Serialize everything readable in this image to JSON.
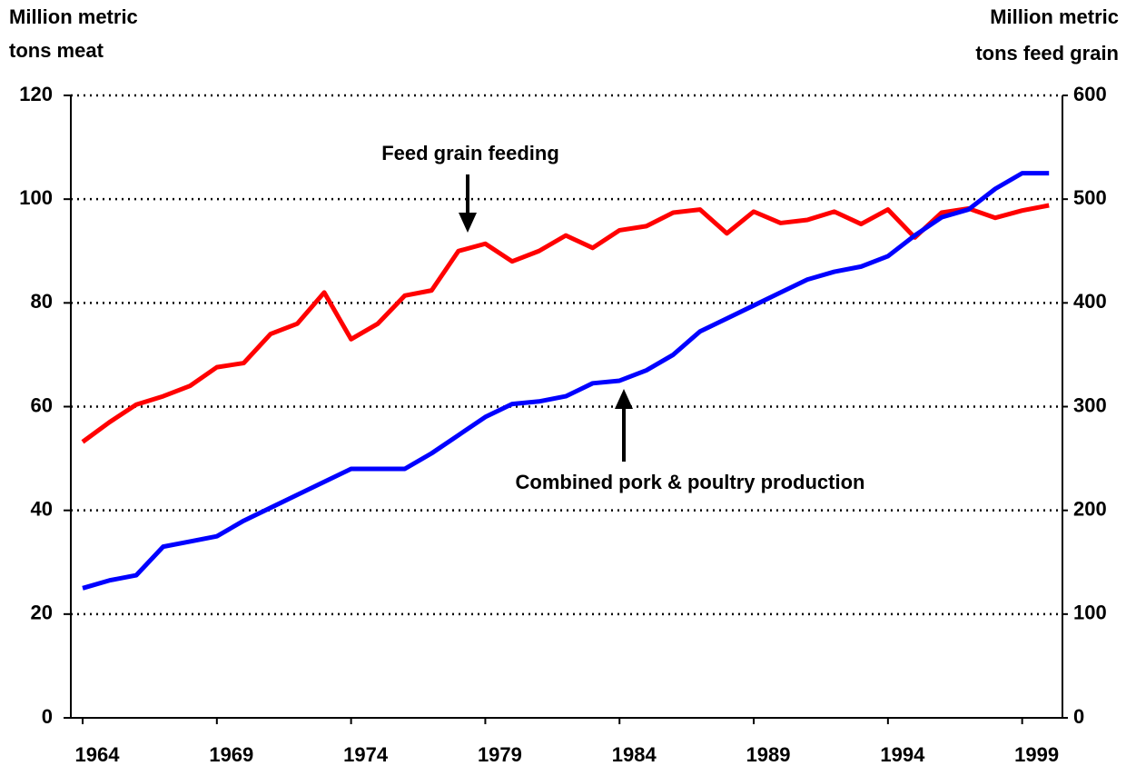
{
  "chart_data": {
    "type": "line",
    "ylabel": [
      "Million metric",
      "tons meat"
    ],
    "y2label": [
      "Million metric",
      "tons feed grain"
    ],
    "annotations": [
      "Feed grain feeding",
      "Combined pork & poultry production"
    ],
    "x": [
      1964,
      1965,
      1966,
      1967,
      1968,
      1969,
      1970,
      1971,
      1972,
      1973,
      1974,
      1975,
      1976,
      1977,
      1978,
      1979,
      1980,
      1981,
      1982,
      1983,
      1984,
      1985,
      1986,
      1987,
      1988,
      1989,
      1990,
      1991,
      1992,
      1993,
      1994,
      1995,
      1996,
      1997,
      1998,
      1999,
      2000
    ],
    "xlim": [
      1963.56,
      2000.5
    ],
    "xticks": [
      1964,
      1969,
      1974,
      1979,
      1984,
      1989,
      1994,
      1999
    ],
    "ylim": [
      0,
      120
    ],
    "yticks": [
      0,
      20,
      40,
      60,
      80,
      100,
      120
    ],
    "y2lim": [
      0,
      600
    ],
    "y2ticks": [
      0,
      100,
      200,
      300,
      400,
      500,
      600
    ],
    "grid": true,
    "series": [
      {
        "name": "Feed grain feeding",
        "color": "#ff0000",
        "axis": "y2",
        "values": [
          266,
          285,
          302,
          310,
          320,
          338,
          342,
          370,
          380,
          410,
          365,
          380,
          407,
          412,
          450,
          457,
          440,
          450,
          465,
          453,
          470,
          474,
          487,
          490,
          467,
          488,
          477,
          480,
          488,
          476,
          490,
          463,
          487,
          491,
          482,
          489,
          494
        ]
      },
      {
        "name": "Combined pork & poultry production",
        "color": "#0000ff",
        "values": [
          25,
          26.5,
          27.5,
          33,
          34,
          35,
          38,
          40.5,
          43,
          45.5,
          48,
          48,
          48,
          51,
          54.5,
          58,
          60.5,
          61,
          62,
          64.5,
          65,
          67,
          70,
          74.5,
          77,
          79.5,
          82,
          84.5,
          86,
          87,
          89,
          93,
          96.5,
          98,
          102,
          105,
          105
        ]
      }
    ]
  }
}
